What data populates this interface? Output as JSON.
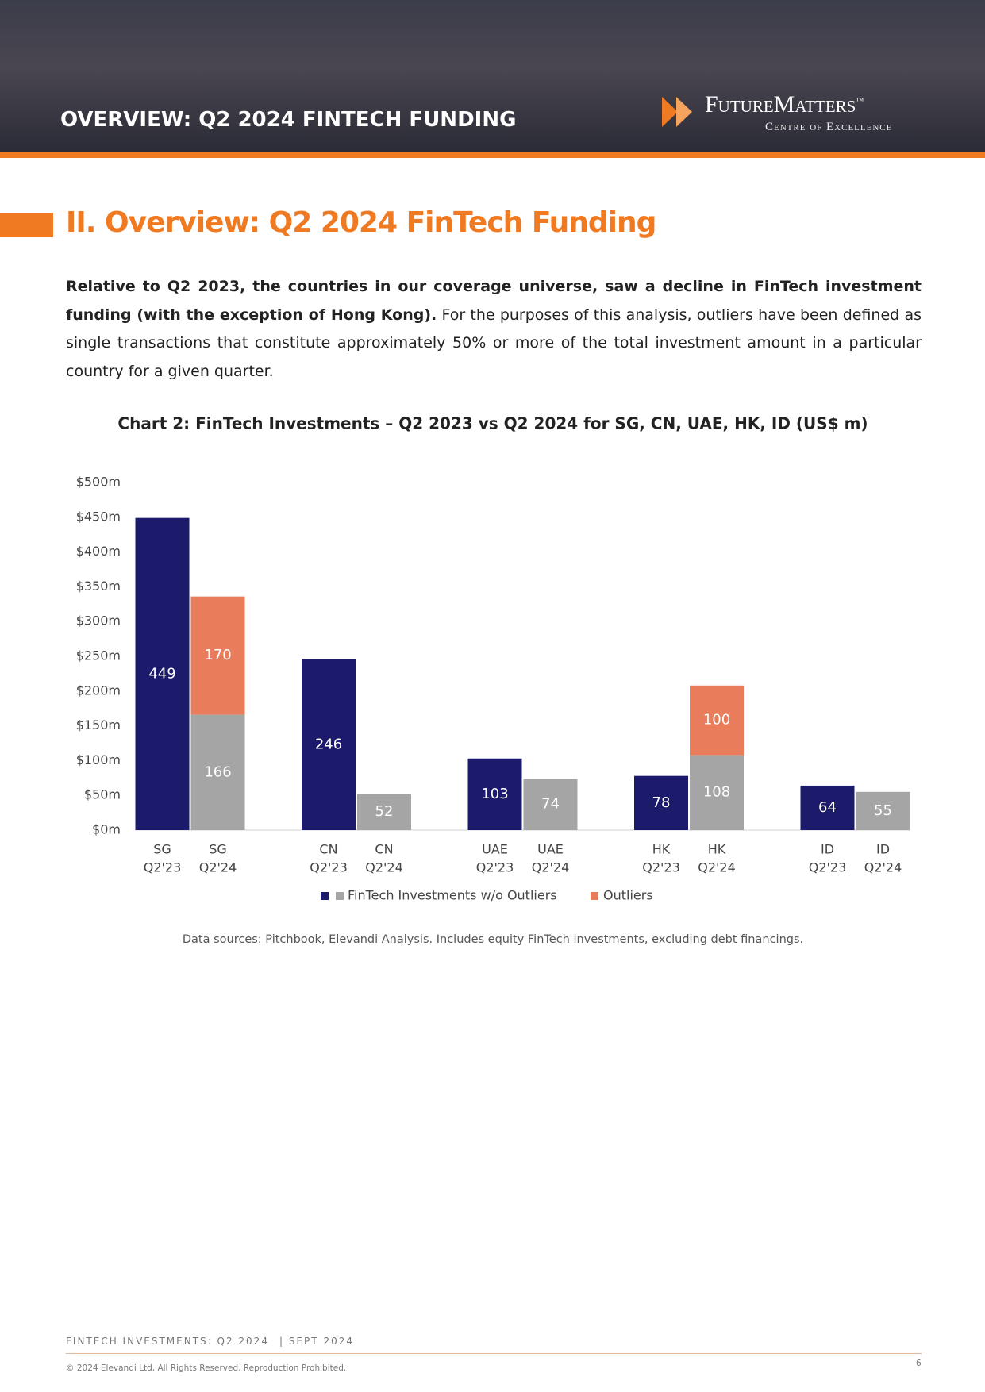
{
  "header": {
    "title": "OVERVIEW: Q2 2024 FINTECH FUNDING",
    "logo": "FutureMatters",
    "logo_mark": "™",
    "logo_sub": "Centre of Excellence"
  },
  "section_title": "II. Overview: Q2 2024 FinTech Funding",
  "paragraph": {
    "bold": "Relative to Q2 2023, the countries in our coverage universe, saw a decline in FinTech investment funding (with the exception of Hong Kong).",
    "text": " For the purposes of this analysis, outliers have been defined as single transactions that constitute approximately 50% or more of the total investment amount in a particular country for a given quarter."
  },
  "chart_data": {
    "type": "stacked_bar",
    "title": "Chart 2: FinTech Investments – Q2 2023 vs Q2 2024 for SG, CN, UAE, HK, ID (US$ m)",
    "categories": [
      [
        "SG",
        "Q2'23"
      ],
      [
        "SG",
        "Q2'24"
      ],
      [
        "CN",
        "Q2'23"
      ],
      [
        "CN",
        "Q2'24"
      ],
      [
        "UAE",
        "Q2'23"
      ],
      [
        "UAE",
        "Q2'24"
      ],
      [
        "HK",
        "Q2'23"
      ],
      [
        "HK",
        "Q2'24"
      ],
      [
        "ID",
        "Q2'23"
      ],
      [
        "ID",
        "Q2'24"
      ]
    ],
    "series": [
      {
        "name": "FinTech Investments w/o Outliers",
        "colors": [
          "#1b1a6b",
          "#a5a5a5",
          "#1b1a6b",
          "#a5a5a5",
          "#1b1a6b",
          "#a5a5a5",
          "#1b1a6b",
          "#a5a5a5",
          "#1b1a6b",
          "#a5a5a5"
        ],
        "values": [
          449,
          166,
          246,
          52,
          103,
          74,
          78,
          108,
          64,
          55
        ]
      },
      {
        "name": "Outliers",
        "color": "#e97c5b",
        "values": [
          null,
          170,
          null,
          null,
          null,
          null,
          null,
          100,
          null,
          null
        ]
      }
    ],
    "ylim": [
      0,
      500
    ],
    "yticks": [
      {
        "value": 0,
        "label": "$0m"
      },
      {
        "value": 50,
        "label": "$50m"
      },
      {
        "value": 100,
        "label": "$100m"
      },
      {
        "value": 150,
        "label": "$150m"
      },
      {
        "value": 200,
        "label": "$200m"
      },
      {
        "value": 250,
        "label": "$250m"
      },
      {
        "value": 300,
        "label": "$300m"
      },
      {
        "value": 350,
        "label": "$350m"
      },
      {
        "value": 400,
        "label": "$400m"
      },
      {
        "value": 450,
        "label": "$450m"
      },
      {
        "value": 500,
        "label": "$500m"
      }
    ],
    "source": "Data sources: Pitchbook, Elevandi Analysis. Includes equity FinTech investments, excluding debt financings."
  },
  "footer": {
    "left": "FINTECH INVESTMENTS: Q2 2024",
    "date": "| SEPT 2024",
    "copyright": "© 2024 Elevandi Ltd, All Rights Reserved. Reproduction Prohibited.",
    "page": "6"
  }
}
